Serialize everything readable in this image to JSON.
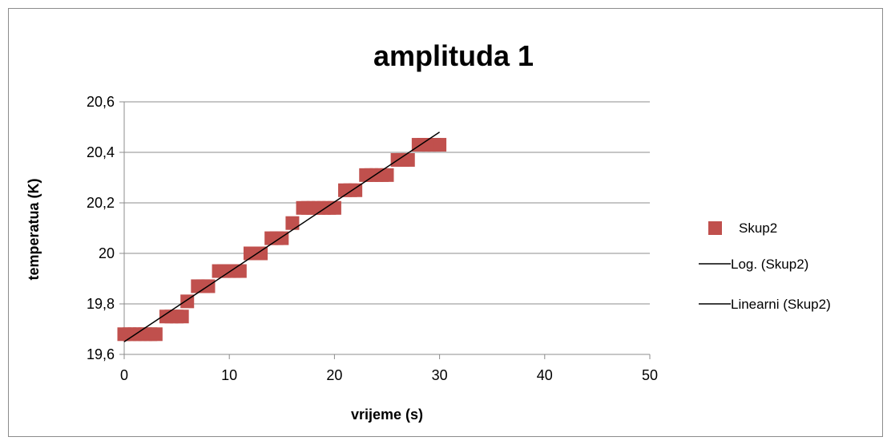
{
  "chart_data": {
    "type": "scatter",
    "title": "amplituda 1",
    "xlabel": "vrijeme (s)",
    "ylabel": "temperatua (K)",
    "xlim": [
      0,
      50
    ],
    "ylim": [
      19.6,
      20.6
    ],
    "x_ticks": [
      0,
      10,
      20,
      30,
      40,
      50
    ],
    "y_ticks": [
      19.6,
      19.8,
      20.0,
      20.2,
      20.4,
      20.6
    ],
    "x_tick_labels": [
      "0",
      "10",
      "20",
      "30",
      "40",
      "50"
    ],
    "y_tick_labels": [
      "19,6",
      "19,8",
      "20",
      "20,2",
      "20,4",
      "20,6"
    ],
    "grid": "horizontal",
    "legend_position": "right",
    "colors": {
      "marker": "#c0504d",
      "trendline": "#000000",
      "grid": "#8c8c8c"
    },
    "series": [
      {
        "name": "Skup2",
        "marker": "square",
        "x": [
          0,
          0.5,
          1,
          1.5,
          2,
          2.5,
          3,
          4,
          4.5,
          5,
          5.5,
          6,
          7,
          7.5,
          8,
          9,
          9.5,
          10,
          10.5,
          11,
          12,
          12.5,
          13,
          14,
          14.5,
          15,
          16,
          17,
          17.5,
          18,
          18.5,
          19,
          19.5,
          20,
          21,
          21.5,
          22,
          23,
          23.5,
          24,
          24.5,
          25,
          26,
          26.5,
          27,
          28,
          28.5,
          29,
          29.5,
          30
        ],
        "y": [
          19.68,
          19.68,
          19.68,
          19.68,
          19.68,
          19.68,
          19.68,
          19.75,
          19.75,
          19.75,
          19.75,
          19.81,
          19.87,
          19.87,
          19.87,
          19.93,
          19.93,
          19.93,
          19.93,
          19.93,
          20.0,
          20.0,
          20.0,
          20.06,
          20.06,
          20.06,
          20.12,
          20.18,
          20.18,
          20.18,
          20.18,
          20.18,
          20.18,
          20.18,
          20.25,
          20.25,
          20.25,
          20.31,
          20.31,
          20.31,
          20.31,
          20.31,
          20.37,
          20.37,
          20.37,
          20.43,
          20.43,
          20.43,
          20.43,
          20.43
        ]
      }
    ],
    "trendlines": [
      {
        "name": "Log. (Skup2)",
        "kind": "log"
      },
      {
        "name": "Linearni (Skup2)",
        "kind": "linear",
        "x": [
          0,
          30
        ],
        "y": [
          19.65,
          20.48
        ]
      }
    ]
  }
}
